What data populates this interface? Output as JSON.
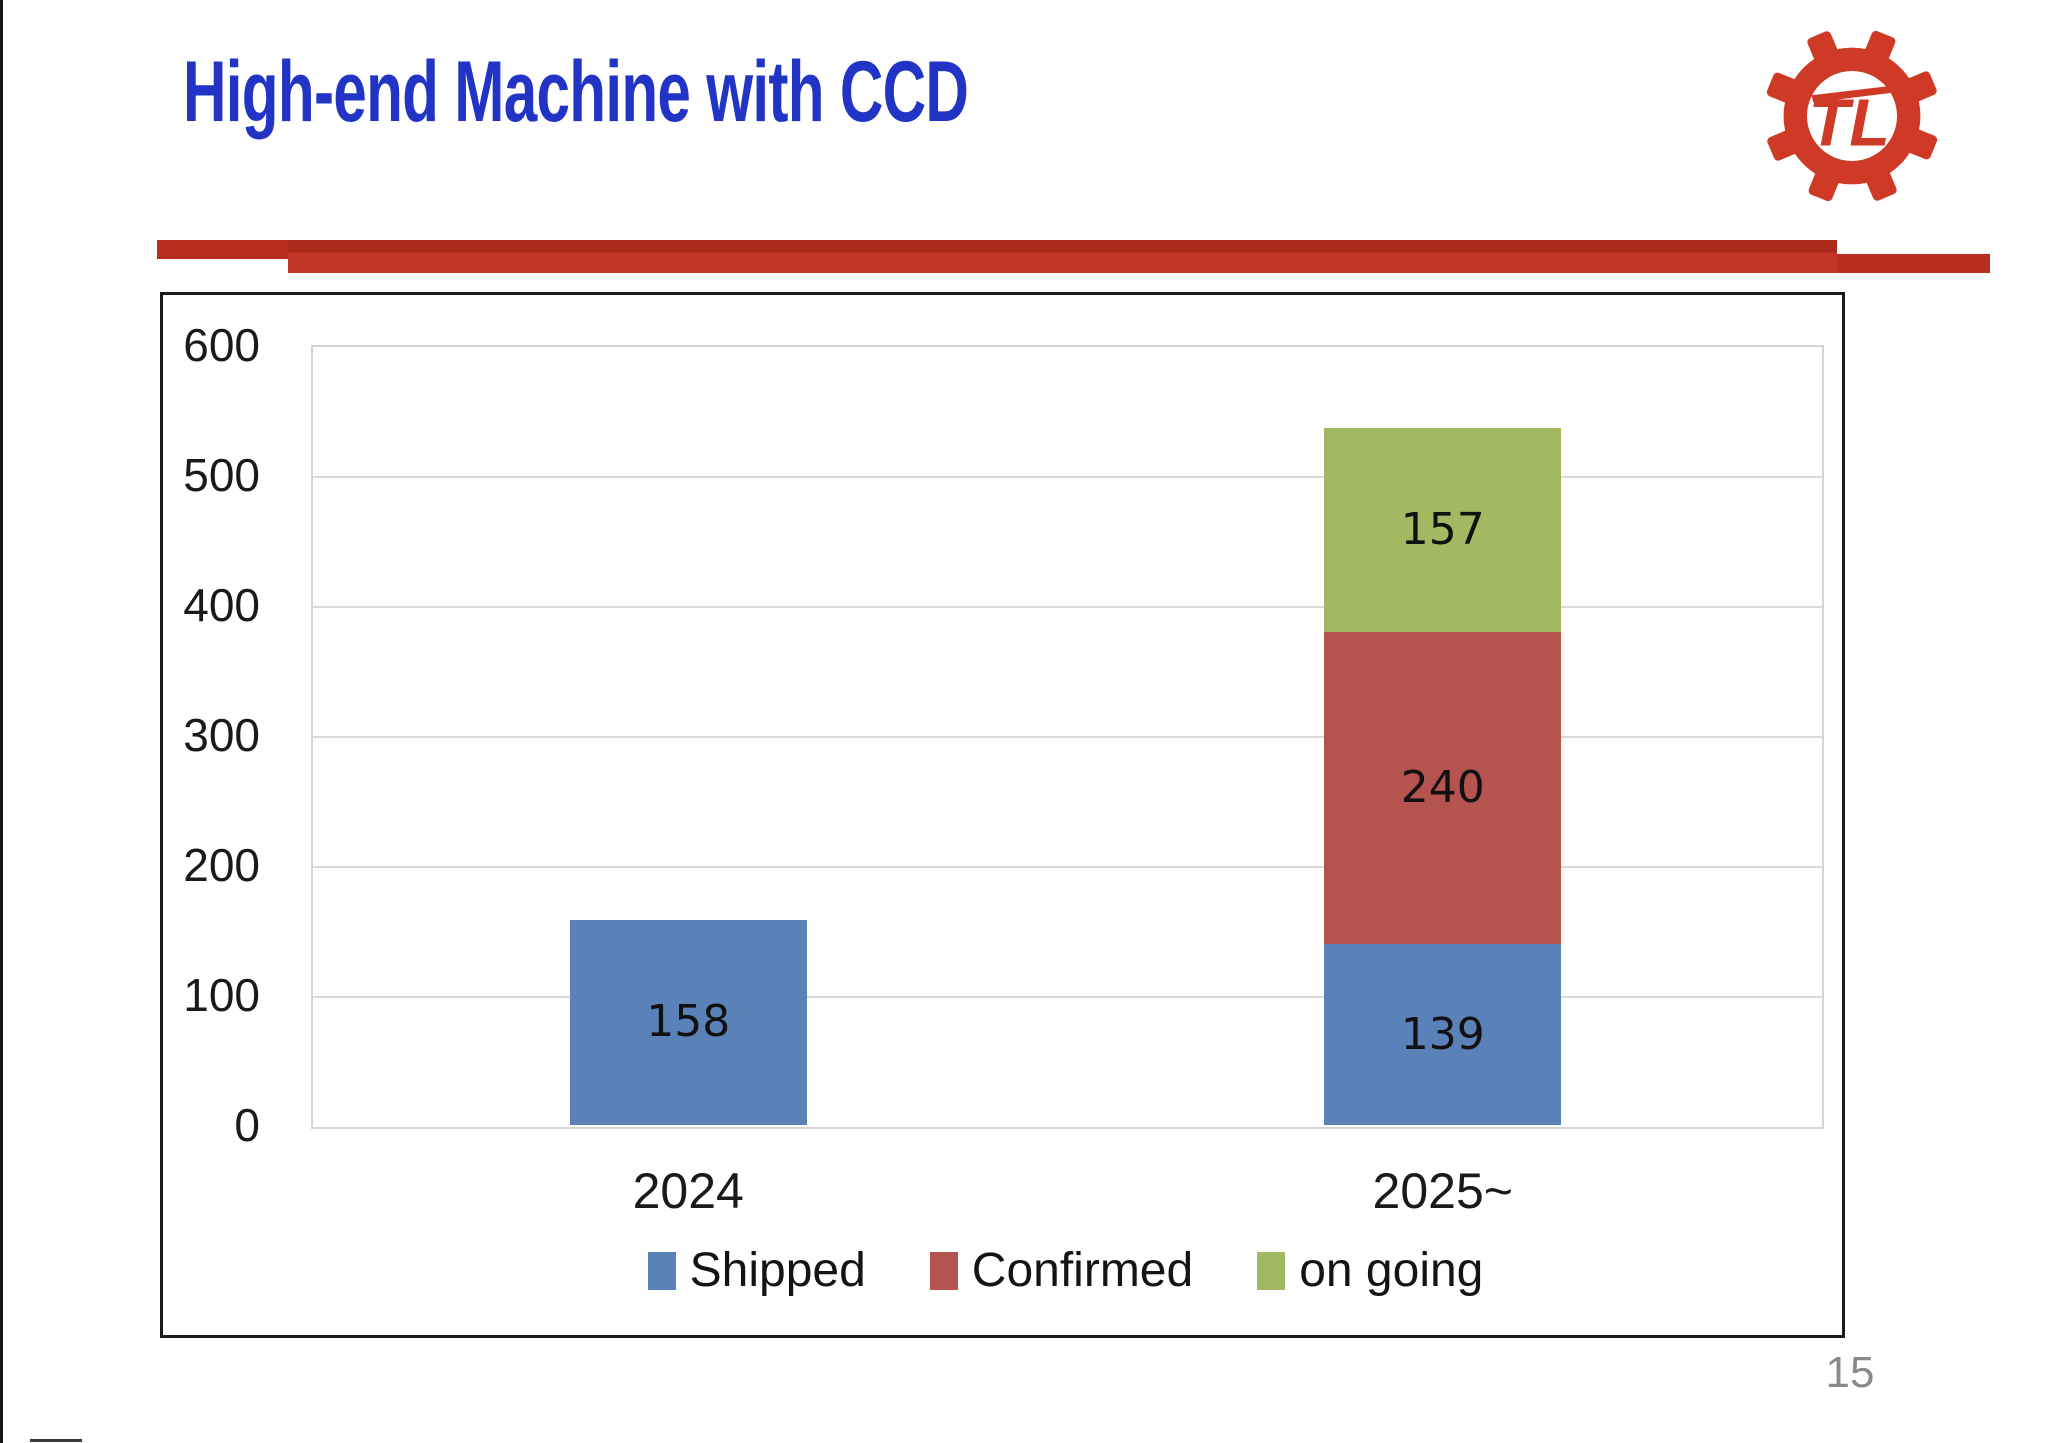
{
  "slide": {
    "title": "High-end Machine with CCD",
    "page_number": "15",
    "logo_monogram": "TL"
  },
  "colors": {
    "title_blue": "#2134C6",
    "divider_red": "#BB2D1E",
    "logo_red": "#CF3A26",
    "shipped_blue": "#5A82B8",
    "confirmed_red": "#B5534F",
    "ongoing_green": "#A2B962"
  },
  "chart_data": {
    "type": "bar",
    "stacked": true,
    "title": "",
    "xlabel": "",
    "ylabel": "",
    "categories": [
      "2024",
      "2025~"
    ],
    "series": [
      {
        "name": "Shipped",
        "color": "#5A82B8",
        "values": [
          158,
          139
        ]
      },
      {
        "name": "Confirmed",
        "color": "#B5534F",
        "values": [
          0,
          240
        ]
      },
      {
        "name": "on going",
        "color": "#A2B962",
        "values": [
          0,
          157
        ]
      }
    ],
    "totals": [
      158,
      536
    ],
    "ylim": [
      0,
      600
    ],
    "yticks": [
      0,
      100,
      200,
      300,
      400,
      500,
      600
    ],
    "grid": true,
    "legend_position": "bottom"
  }
}
